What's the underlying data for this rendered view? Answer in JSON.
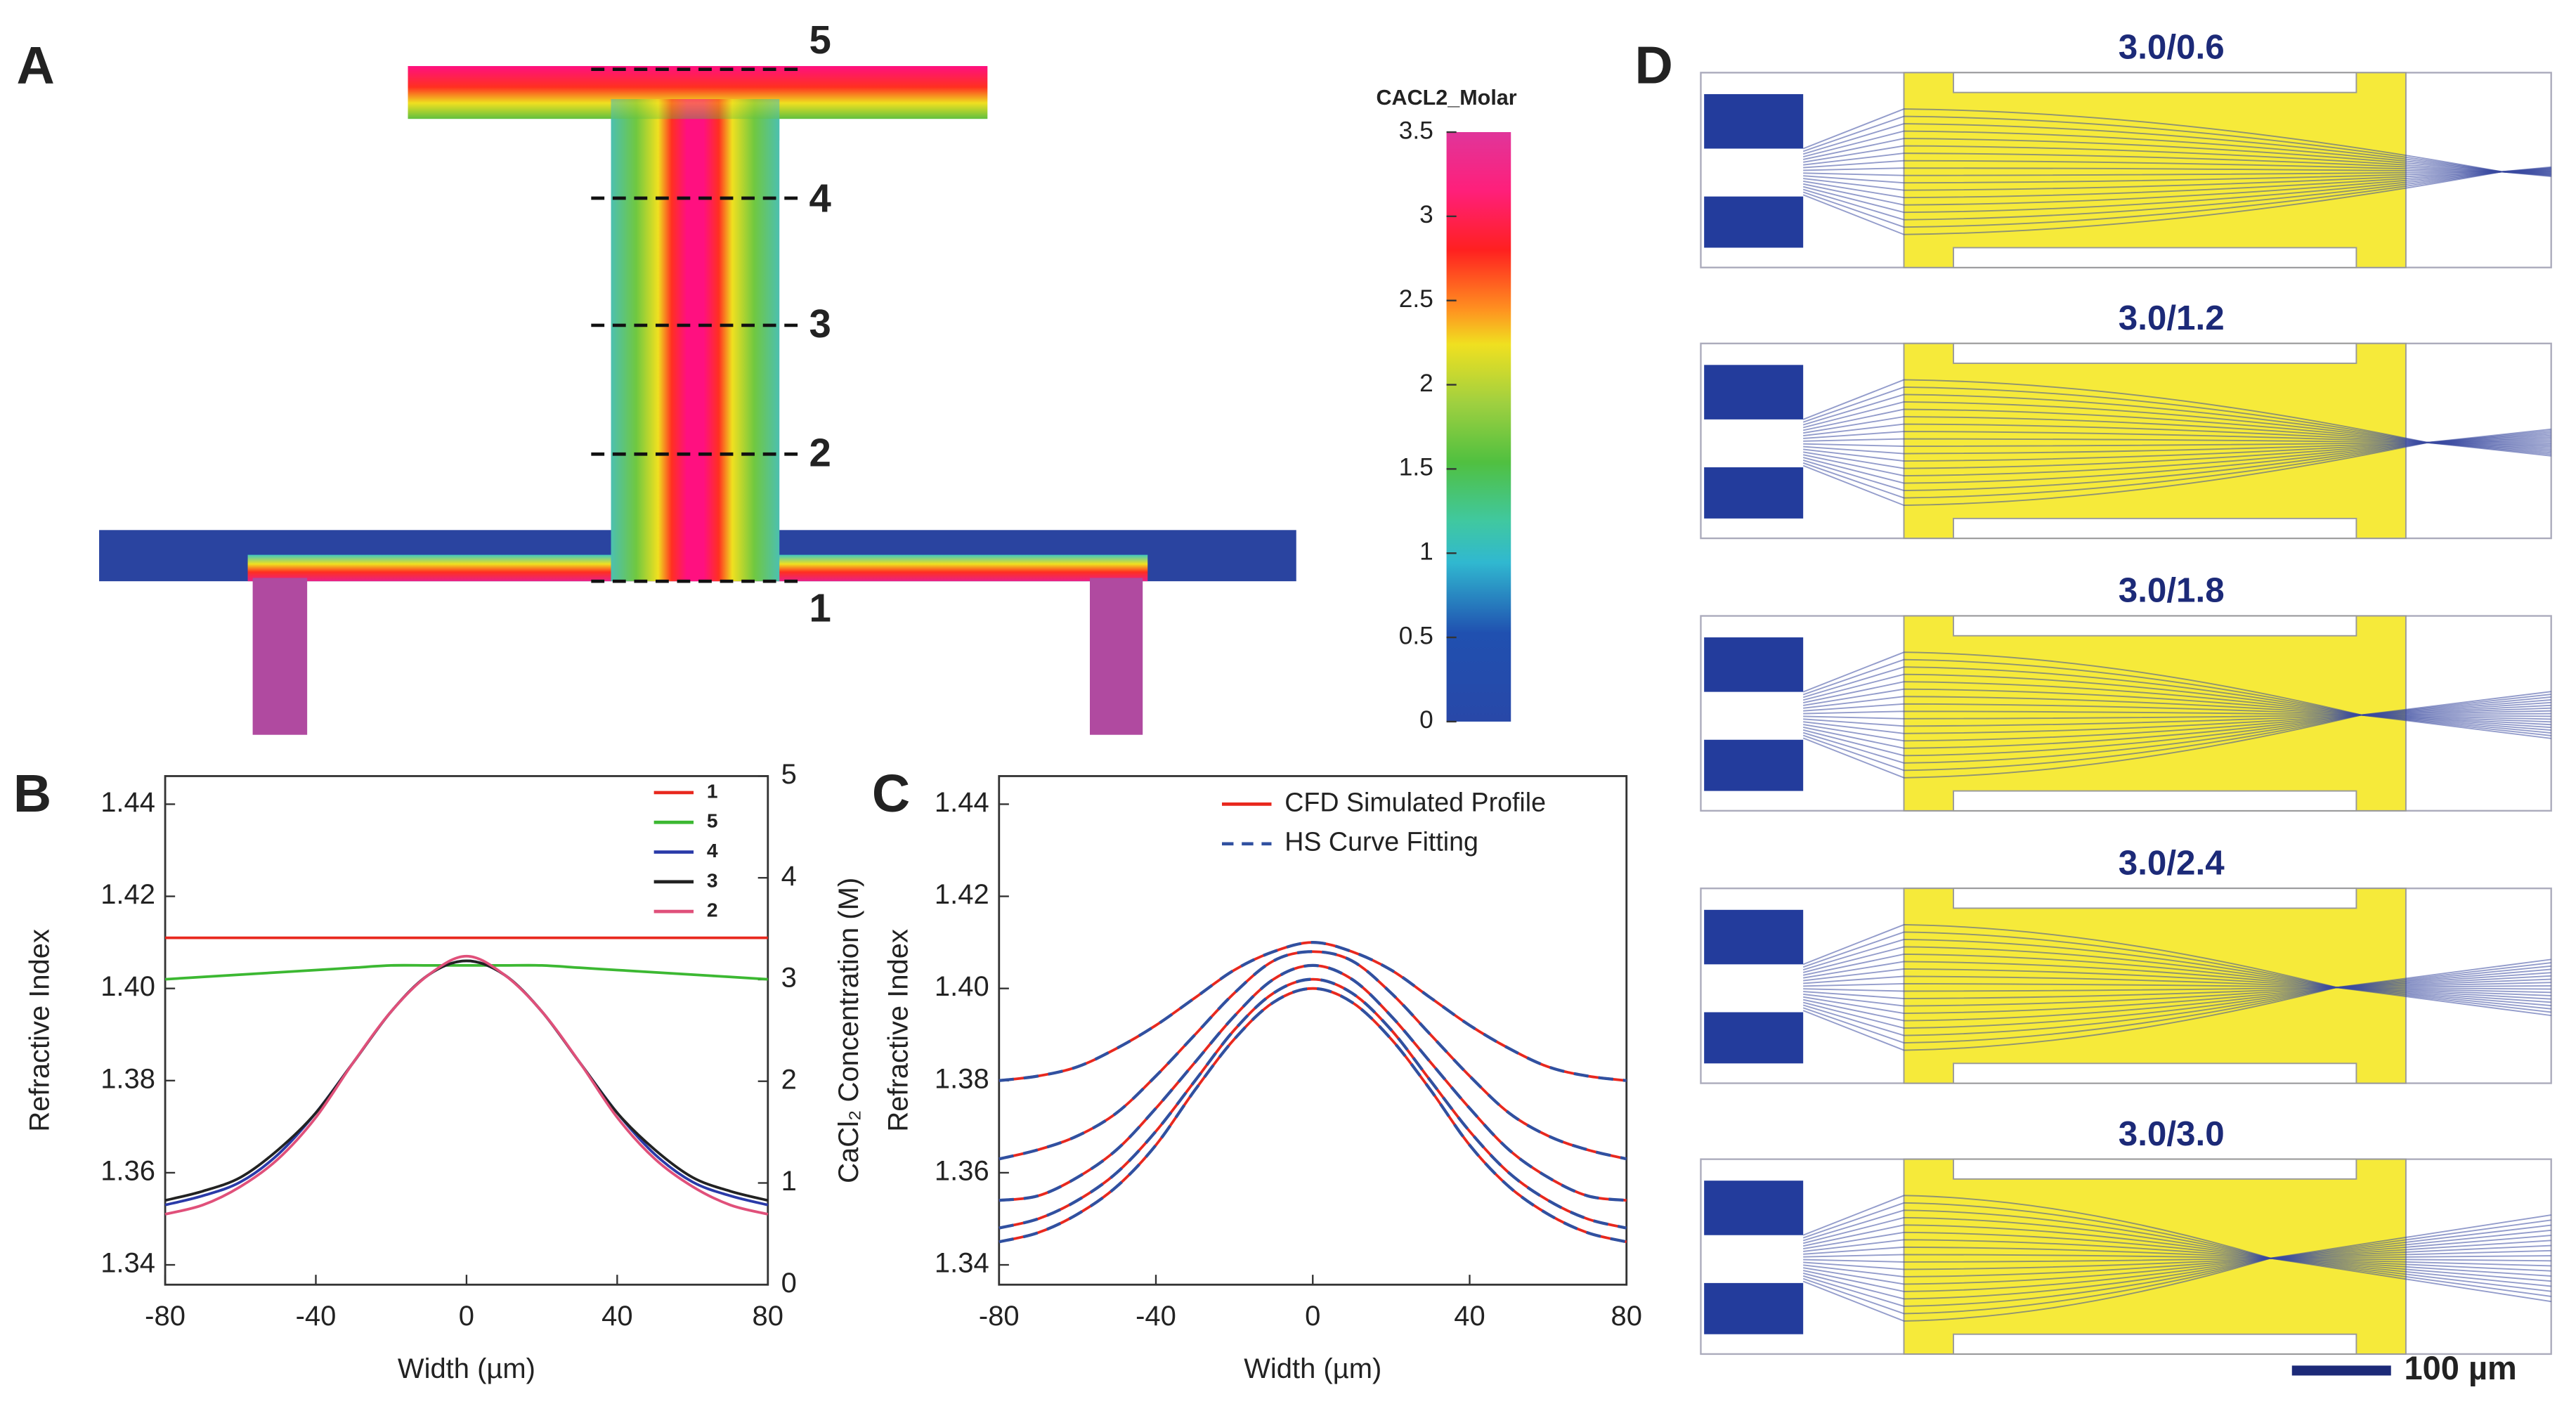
{
  "panel_a": {
    "label": "A",
    "cut_labels": [
      "5",
      "4",
      "3",
      "2",
      "1"
    ],
    "colorbar": {
      "title": "CACL2_Molar",
      "lim": [
        0,
        3.5
      ],
      "ticks": [
        0,
        0.5,
        1,
        1.5,
        2,
        2.5,
        3,
        3.5
      ]
    }
  },
  "chart_data": [
    {
      "type": "line",
      "label": "B",
      "xlabel": "Width (µm)",
      "ylabel": "Refractive Index",
      "y2label": "CaCl₂ Concentration (M)",
      "x": [
        -80,
        -70,
        -60,
        -50,
        -40,
        -30,
        -20,
        -10,
        0,
        10,
        20,
        30,
        40,
        50,
        60,
        70,
        80
      ],
      "xlim": [
        -80,
        80
      ],
      "xticks": [
        -80,
        -40,
        0,
        40,
        80
      ],
      "ylim": [
        1.3357,
        1.4461
      ],
      "yticks": [
        1.34,
        1.36,
        1.38,
        {
          "value": 1.4,
          "label": "1.40"
        },
        1.42,
        1.44
      ],
      "y2lim": [
        0,
        5
      ],
      "y2ticks": [
        0,
        1,
        2,
        3,
        4,
        5
      ],
      "legend": "upper right",
      "series": [
        {
          "name": "1",
          "color": "#e8281e",
          "values": [
            1.411,
            1.411,
            1.411,
            1.411,
            1.411,
            1.411,
            1.411,
            1.411,
            1.411,
            1.411,
            1.411,
            1.411,
            1.411,
            1.411,
            1.411,
            1.411,
            1.411
          ]
        },
        {
          "name": "5",
          "color": "#3cb832",
          "values": [
            1.402,
            1.4025,
            1.403,
            1.4035,
            1.404,
            1.4045,
            1.405,
            1.405,
            1.405,
            1.405,
            1.405,
            1.4045,
            1.404,
            1.4035,
            1.403,
            1.4025,
            1.402
          ]
        },
        {
          "name": "4",
          "color": "#2a3aa8",
          "values": [
            1.353,
            1.355,
            1.358,
            1.364,
            1.373,
            1.384,
            1.395,
            1.403,
            1.406,
            1.403,
            1.395,
            1.384,
            1.373,
            1.364,
            1.358,
            1.355,
            1.353
          ]
        },
        {
          "name": "3",
          "color": "#222222",
          "values": [
            1.354,
            1.356,
            1.359,
            1.365,
            1.373,
            1.384,
            1.395,
            1.403,
            1.406,
            1.403,
            1.395,
            1.384,
            1.373,
            1.365,
            1.359,
            1.356,
            1.354
          ]
        },
        {
          "name": "2",
          "color": "#e0507a",
          "values": [
            1.351,
            1.353,
            1.357,
            1.363,
            1.372,
            1.384,
            1.395,
            1.403,
            1.407,
            1.403,
            1.395,
            1.384,
            1.372,
            1.363,
            1.357,
            1.353,
            1.351
          ]
        }
      ]
    },
    {
      "type": "line",
      "label": "C",
      "xlabel": "Width (µm)",
      "ylabel": "Refractive Index",
      "x": [
        -80,
        -70,
        -60,
        -50,
        -40,
        -30,
        -20,
        -10,
        0,
        10,
        20,
        30,
        40,
        50,
        60,
        70,
        80
      ],
      "xlim": [
        -80,
        80
      ],
      "xticks": [
        -80,
        -40,
        0,
        40,
        80
      ],
      "ylim": [
        1.3357,
        1.4461
      ],
      "yticks": [
        1.34,
        1.36,
        1.38,
        {
          "value": 1.4,
          "label": "1.40"
        },
        1.42,
        1.44
      ],
      "legend": "upper right",
      "series": [
        {
          "name": "CFD Simulated Profile",
          "color": "#e8281e",
          "dashed": false,
          "profiles": [
            [
              1.38,
              1.381,
              1.383,
              1.387,
              1.392,
              1.398,
              1.404,
              1.408,
              1.41,
              1.408,
              1.404,
              1.398,
              1.392,
              1.387,
              1.383,
              1.381,
              1.38
            ],
            [
              1.363,
              1.365,
              1.368,
              1.373,
              1.381,
              1.39,
              1.399,
              1.406,
              1.408,
              1.406,
              1.399,
              1.39,
              1.381,
              1.373,
              1.368,
              1.365,
              1.363
            ],
            [
              1.354,
              1.355,
              1.359,
              1.365,
              1.374,
              1.384,
              1.394,
              1.402,
              1.405,
              1.402,
              1.394,
              1.384,
              1.374,
              1.365,
              1.359,
              1.355,
              1.354
            ],
            [
              1.348,
              1.35,
              1.354,
              1.36,
              1.369,
              1.38,
              1.391,
              1.399,
              1.402,
              1.399,
              1.391,
              1.38,
              1.369,
              1.36,
              1.354,
              1.35,
              1.348
            ],
            [
              1.345,
              1.347,
              1.351,
              1.357,
              1.366,
              1.378,
              1.389,
              1.397,
              1.4,
              1.397,
              1.389,
              1.378,
              1.366,
              1.357,
              1.351,
              1.347,
              1.345
            ]
          ]
        },
        {
          "name": "HS Curve Fitting",
          "color": "#3050a0",
          "dashed": true,
          "profiles": [
            [
              1.38,
              1.381,
              1.383,
              1.387,
              1.392,
              1.398,
              1.404,
              1.408,
              1.41,
              1.408,
              1.404,
              1.398,
              1.392,
              1.387,
              1.383,
              1.381,
              1.38
            ],
            [
              1.363,
              1.365,
              1.368,
              1.373,
              1.381,
              1.39,
              1.399,
              1.406,
              1.408,
              1.406,
              1.399,
              1.39,
              1.381,
              1.373,
              1.368,
              1.365,
              1.363
            ],
            [
              1.354,
              1.355,
              1.359,
              1.365,
              1.374,
              1.384,
              1.394,
              1.402,
              1.405,
              1.402,
              1.394,
              1.384,
              1.374,
              1.365,
              1.359,
              1.355,
              1.354
            ],
            [
              1.348,
              1.35,
              1.354,
              1.36,
              1.369,
              1.38,
              1.391,
              1.399,
              1.402,
              1.399,
              1.391,
              1.38,
              1.369,
              1.36,
              1.354,
              1.35,
              1.348
            ],
            [
              1.345,
              1.347,
              1.351,
              1.357,
              1.366,
              1.378,
              1.389,
              1.397,
              1.4,
              1.397,
              1.389,
              1.378,
              1.366,
              1.357,
              1.351,
              1.347,
              1.345
            ]
          ]
        }
      ]
    }
  ],
  "panel_d": {
    "label": "D",
    "titles": [
      "3.0/0.6",
      "3.0/1.2",
      "3.0/1.8",
      "3.0/2.4",
      "3.0/3.0"
    ],
    "scale_bar": "100 µm"
  }
}
